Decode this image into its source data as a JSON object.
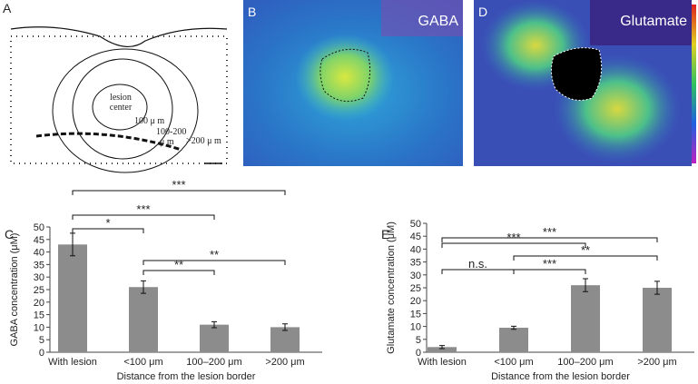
{
  "panels": {
    "a": {
      "letter": "A",
      "labels": [
        "lesion",
        "center",
        "100 μ m",
        "100-200",
        "μ m",
        ">200 μ m"
      ]
    },
    "b": {
      "letter": "B",
      "label": "GABA"
    },
    "d": {
      "letter": "D",
      "label": "Glutamate"
    }
  },
  "chart_data": [
    {
      "type": "bar",
      "letter": "C",
      "ylabel": "GABA concentration (μM)",
      "xlabel": "Distance from the lesion border",
      "categories": [
        "With lesion",
        "<100 μm",
        "100–200 μm",
        ">200 μm"
      ],
      "values": [
        43,
        26,
        11,
        10
      ],
      "errors": [
        4.5,
        2.5,
        1.2,
        1.3
      ],
      "color": "#8c8c8c",
      "ylim": [
        0,
        50
      ],
      "yticks": [
        0,
        5,
        10,
        15,
        20,
        25,
        30,
        35,
        40,
        45,
        50
      ],
      "brackets": [
        {
          "from": 0,
          "to": 3,
          "label": "***"
        },
        {
          "from": 0,
          "to": 2,
          "label": "***"
        },
        {
          "from": 0,
          "to": 1,
          "label": "*"
        },
        {
          "from": 1,
          "to": 3,
          "label": "**"
        },
        {
          "from": 1,
          "to": 2,
          "label": "**"
        }
      ]
    },
    {
      "type": "bar",
      "letter": "E",
      "ylabel": "Glutamate concentration (μM)",
      "xlabel": "Distance from the lesion border",
      "categories": [
        "With lesion",
        "<100 μm",
        "100–200 μm",
        ">200 μm"
      ],
      "values": [
        2,
        9.5,
        26,
        25
      ],
      "errors": [
        0.6,
        0.6,
        2.5,
        2.5
      ],
      "color": "#8c8c8c",
      "ylim": [
        0,
        50
      ],
      "yticks": [
        0,
        5,
        10,
        15,
        20,
        25,
        30,
        35,
        40,
        45,
        50
      ],
      "brackets": [
        {
          "from": 0,
          "to": 3,
          "label": "***"
        },
        {
          "from": 0,
          "to": 2,
          "label": "***"
        },
        {
          "from": 1,
          "to": 3,
          "label": "**"
        },
        {
          "from": 0,
          "to": 1,
          "label": "n.s."
        },
        {
          "from": 1,
          "to": 2,
          "label": "***"
        }
      ]
    }
  ]
}
